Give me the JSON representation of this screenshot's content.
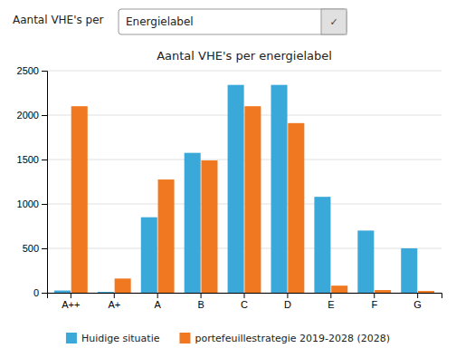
{
  "chart_data": {
    "type": "bar",
    "title": "Aantal VHE's per energielabel",
    "annotations": [
      "Aantal VHE's per",
      "Energielabel",
      "✓"
    ],
    "categories": [
      "A++",
      "A+",
      "A",
      "B",
      "C",
      "D",
      "E",
      "F",
      "G"
    ],
    "series": [
      {
        "name": "Huidige situatie",
        "color": "#3AA8D8",
        "values": [
          25,
          10,
          850,
          1575,
          2340,
          2340,
          1080,
          700,
          500
        ]
      },
      {
        "name": "portefeuillestrategie 2019-2028 (2028)",
        "color": "#F07820",
        "values": [
          2100,
          160,
          1275,
          1490,
          2100,
          1910,
          80,
          30,
          20
        ]
      }
    ],
    "ylim": [
      0,
      2500
    ],
    "yticks": [
      0,
      500,
      1000,
      1500,
      2000,
      2500
    ],
    "grid": true,
    "legend": "bottom"
  }
}
